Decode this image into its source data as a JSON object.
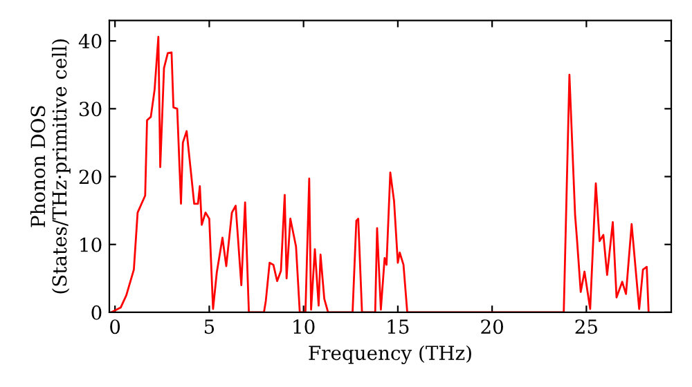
{
  "chart_data": {
    "type": "line",
    "xlabel": "Frequency (THz)",
    "ylabel": "Phonon DOS\n(States/THz·primitive cell)",
    "xlim": [
      -0.3,
      29.5
    ],
    "ylim": [
      0,
      43
    ],
    "xticks": [
      0,
      5,
      10,
      15,
      20,
      25
    ],
    "yticks": [
      0,
      10,
      20,
      30,
      40
    ],
    "grid": false,
    "legend": false,
    "marker": "none",
    "line_style": "solid",
    "series": [
      {
        "color": "#ff0000",
        "x": [
          -0.2,
          0.3,
          0.6,
          1.0,
          1.2,
          1.6,
          1.7,
          1.9,
          2.1,
          2.3,
          2.4,
          2.6,
          2.8,
          3.0,
          3.1,
          3.3,
          3.5,
          3.6,
          3.8,
          4.0,
          4.2,
          4.4,
          4.5,
          4.6,
          4.8,
          5.0,
          5.2,
          5.4,
          5.7,
          5.9,
          6.2,
          6.4,
          6.7,
          6.9,
          7.1,
          7.9,
          8.0,
          8.2,
          8.4,
          8.6,
          8.8,
          9.0,
          9.1,
          9.3,
          9.6,
          9.8,
          10.1,
          10.3,
          10.4,
          10.6,
          10.8,
          10.9,
          11.1,
          11.3,
          12.6,
          12.8,
          12.9,
          13.1,
          13.8,
          13.9,
          14.1,
          14.3,
          14.4,
          14.6,
          14.8,
          15.0,
          15.1,
          15.3,
          15.5,
          23.8,
          24.1,
          24.4,
          24.5,
          24.7,
          24.9,
          25.2,
          25.5,
          25.7,
          25.9,
          26.1,
          26.4,
          26.6,
          26.9,
          27.1,
          27.4,
          27.8,
          28.0,
          28.2,
          28.3
        ],
        "values": [
          0,
          0.7,
          2.5,
          6.3,
          14.7,
          17.2,
          28.3,
          28.8,
          32.8,
          40.6,
          21.4,
          36,
          38.2,
          38.3,
          30.2,
          30,
          16,
          25,
          26.7,
          21.4,
          16,
          16,
          18.6,
          12.9,
          14.7,
          13.8,
          0.5,
          5.9,
          11,
          6.8,
          14.7,
          15.7,
          4,
          16.2,
          0,
          0,
          1.7,
          7.3,
          7,
          4.6,
          6.1,
          17.3,
          5,
          13.8,
          9.7,
          0,
          0,
          19.7,
          0.4,
          9.3,
          1,
          8.5,
          2,
          0,
          0,
          13.5,
          13.8,
          0,
          0,
          12.4,
          0.4,
          8,
          7,
          20.6,
          16.4,
          7.3,
          8.8,
          7,
          0,
          0,
          35,
          14.4,
          10.8,
          3,
          6,
          0.5,
          19,
          10.5,
          11.4,
          5.5,
          13.3,
          2.2,
          4.5,
          2.7,
          13,
          0.5,
          6.3,
          6.7,
          0
        ]
      }
    ]
  }
}
